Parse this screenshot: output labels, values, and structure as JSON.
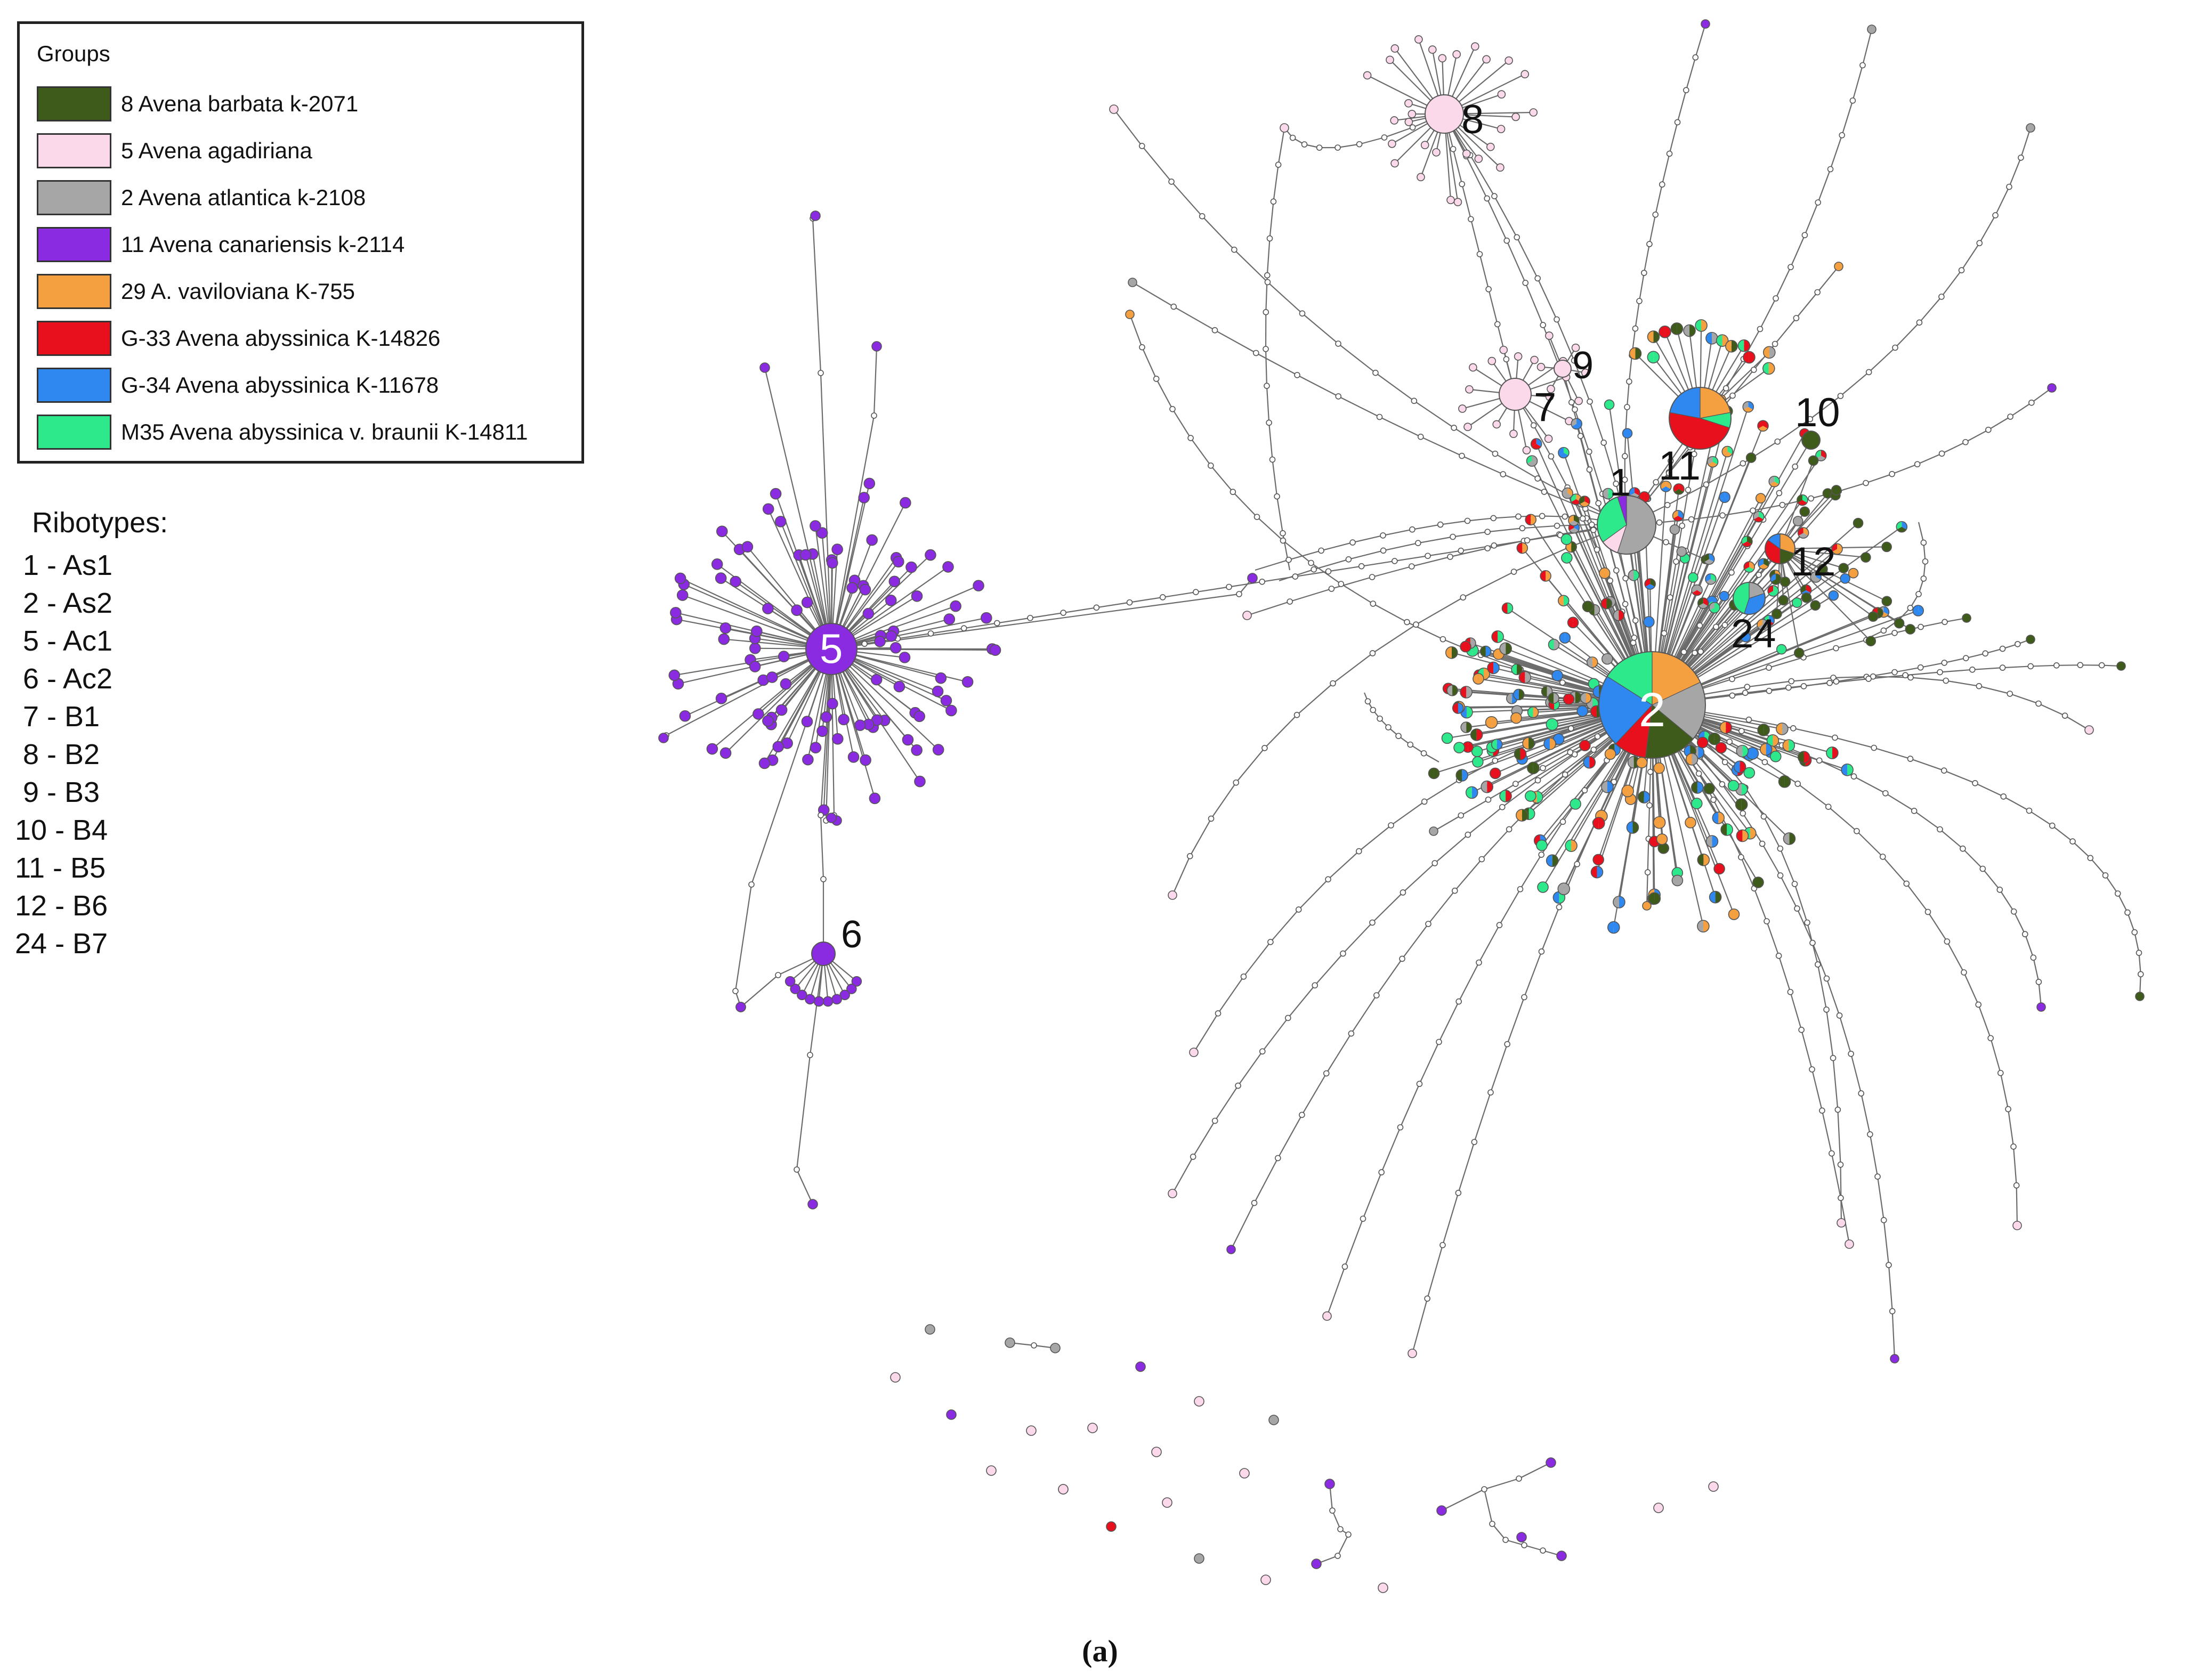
{
  "legend": {
    "title": "Groups",
    "groups": [
      {
        "label": "8 Avena barbata k-2071",
        "color": "#3f5b1b"
      },
      {
        "label": "5 Avena agadiriana",
        "color": "#fcd9ea"
      },
      {
        "label": "2 Avena atlantica k-2108",
        "color": "#a6a6a6"
      },
      {
        "label": "11 Avena canariensis k-2114",
        "color": "#8a2be2"
      },
      {
        "label": "29 A. vaviloviana K-755",
        "color": "#f4a040"
      },
      {
        "label": "G-33 Avena abyssinica K-14826",
        "color": "#e8101c"
      },
      {
        "label": "G-34 Avena abyssinica K-11678",
        "color": "#2f88f0"
      },
      {
        "label": "M35 Avena abyssinica v. braunii K-14811",
        "color": "#2ee88c"
      }
    ]
  },
  "ribotypes": {
    "title": "Ribotypes:",
    "items": [
      {
        "text": " 1 - As1"
      },
      {
        "text": " 2 - As2"
      },
      {
        "text": " 5 - Ac1"
      },
      {
        "text": " 6 - Ac2"
      },
      {
        "text": " 7 - B1"
      },
      {
        "text": " 8 - B2"
      },
      {
        "text": " 9 - B3"
      },
      {
        "text": "10 - B4"
      },
      {
        "text": "11 - B5"
      },
      {
        "text": "12 - B6"
      },
      {
        "text": "24 - B7"
      }
    ]
  },
  "network": {
    "hubs": [
      {
        "label": "5",
        "color": "#8a2be2"
      },
      {
        "label": "6",
        "color": "#8a2be2"
      },
      {
        "label": "8",
        "color": "#fcd9ea"
      },
      {
        "label": "7",
        "color": "#fcd9ea"
      },
      {
        "label": "9",
        "color": "#fcd9ea"
      },
      {
        "label": "1",
        "color": "#a6a6a6"
      },
      {
        "label": "2",
        "color": "#a6a6a6"
      },
      {
        "label": "10",
        "color": "#3f5b1b"
      },
      {
        "label": "11",
        "color": "#e8101c"
      },
      {
        "label": "12",
        "color": "#e8101c"
      },
      {
        "label": "24",
        "color": "#2ee88c"
      }
    ],
    "edge_color": "#6b6b6b"
  },
  "caption": "(a)"
}
